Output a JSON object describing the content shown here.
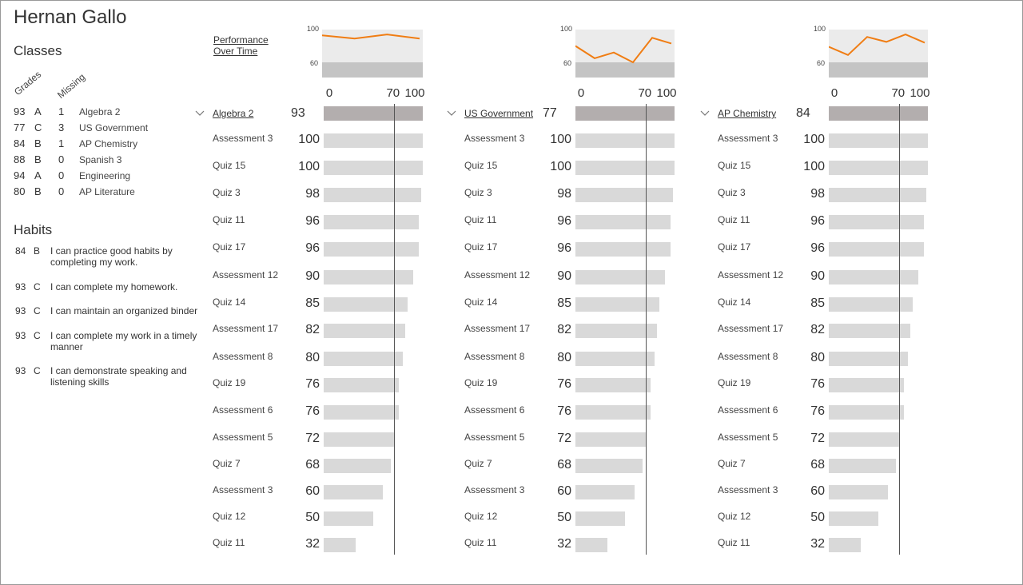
{
  "student": {
    "name": "Hernan Gallo"
  },
  "classes_section": {
    "title": "Classes",
    "col_grades": "Grades",
    "col_missing": "Missing",
    "rows": [
      {
        "score": "93",
        "grade": "A",
        "missing": "1",
        "name": "Algebra 2"
      },
      {
        "score": "77",
        "grade": "C",
        "missing": "3",
        "name": "US Government"
      },
      {
        "score": "84",
        "grade": "B",
        "missing": "1",
        "name": "AP Chemistry"
      },
      {
        "score": "88",
        "grade": "B",
        "missing": "0",
        "name": "Spanish 3"
      },
      {
        "score": "94",
        "grade": "A",
        "missing": "0",
        "name": "Engineering"
      },
      {
        "score": "80",
        "grade": "B",
        "missing": "0",
        "name": "AP Literature"
      }
    ]
  },
  "habits_section": {
    "title": "Habits",
    "rows": [
      {
        "score": "84",
        "grade": "B",
        "text": "I can practice good habits by completing my work."
      },
      {
        "score": "93",
        "grade": "C",
        "text": "I can complete my homework."
      },
      {
        "score": "93",
        "grade": "C",
        "text": "I can maintain an organized binder"
      },
      {
        "score": "93",
        "grade": "C",
        "text": "I can complete my work in a timely manner"
      },
      {
        "score": "93",
        "grade": "C",
        "text": "I can demonstrate speaking and listening skills"
      }
    ]
  },
  "performance_link": "Performance Over Time",
  "colors": {
    "line": "#f07d13",
    "spark_top": "#ebebeb",
    "spark_bottom": "#c4c4c4",
    "course_bar": "#b3aeae",
    "assessment_bar": "#d9d9d9"
  },
  "scale": {
    "min": 0,
    "max": 100,
    "reference": 70,
    "ticks": [
      "0",
      "70",
      "100"
    ],
    "spark_top_label": "100",
    "spark_mid_label": "60"
  },
  "courses": [
    {
      "name": "Algebra 2",
      "score": "93",
      "trend": [
        93,
        89,
        94,
        89
      ],
      "assessments": [
        {
          "name": "Assessment 3",
          "score": "100"
        },
        {
          "name": "Quiz 15",
          "score": "100"
        },
        {
          "name": "Quiz 3",
          "score": "98"
        },
        {
          "name": "Quiz 11",
          "score": "96"
        },
        {
          "name": "Quiz 17",
          "score": "96"
        },
        {
          "name": "Assessment 12",
          "score": "90"
        },
        {
          "name": "Quiz 14",
          "score": "85"
        },
        {
          "name": "Assessment 17",
          "score": "82"
        },
        {
          "name": "Assessment 8",
          "score": "80"
        },
        {
          "name": "Quiz 19",
          "score": "76"
        },
        {
          "name": "Assessment 6",
          "score": "76"
        },
        {
          "name": "Assessment 5",
          "score": "72"
        },
        {
          "name": "Quiz 7",
          "score": "68"
        },
        {
          "name": "Assessment 3",
          "score": "60"
        },
        {
          "name": "Quiz 12",
          "score": "50"
        },
        {
          "name": "Quiz 11",
          "score": "32"
        }
      ]
    },
    {
      "name": "US Government",
      "score": "77",
      "trend": [
        80,
        65,
        72,
        60,
        90,
        83
      ],
      "assessments": [
        {
          "name": "Assessment 3",
          "score": "100"
        },
        {
          "name": "Quiz 15",
          "score": "100"
        },
        {
          "name": "Quiz 3",
          "score": "98"
        },
        {
          "name": "Quiz 11",
          "score": "96"
        },
        {
          "name": "Quiz 17",
          "score": "96"
        },
        {
          "name": "Assessment 12",
          "score": "90"
        },
        {
          "name": "Quiz 14",
          "score": "85"
        },
        {
          "name": "Assessment 17",
          "score": "82"
        },
        {
          "name": "Assessment 8",
          "score": "80"
        },
        {
          "name": "Quiz 19",
          "score": "76"
        },
        {
          "name": "Assessment 6",
          "score": "76"
        },
        {
          "name": "Assessment 5",
          "score": "72"
        },
        {
          "name": "Quiz 7",
          "score": "68"
        },
        {
          "name": "Assessment 3",
          "score": "60"
        },
        {
          "name": "Quiz 12",
          "score": "50"
        },
        {
          "name": "Quiz 11",
          "score": "32"
        }
      ]
    },
    {
      "name": "AP Chemistry",
      "score": "84",
      "trend": [
        79,
        69,
        91,
        85,
        94,
        84
      ],
      "assessments": [
        {
          "name": "Assessment 3",
          "score": "100"
        },
        {
          "name": "Quiz 15",
          "score": "100"
        },
        {
          "name": "Quiz 3",
          "score": "98"
        },
        {
          "name": "Quiz 11",
          "score": "96"
        },
        {
          "name": "Quiz 17",
          "score": "96"
        },
        {
          "name": "Assessment 12",
          "score": "90"
        },
        {
          "name": "Quiz 14",
          "score": "85"
        },
        {
          "name": "Assessment 17",
          "score": "82"
        },
        {
          "name": "Assessment 8",
          "score": "80"
        },
        {
          "name": "Quiz 19",
          "score": "76"
        },
        {
          "name": "Assessment 6",
          "score": "76"
        },
        {
          "name": "Assessment 5",
          "score": "72"
        },
        {
          "name": "Quiz 7",
          "score": "68"
        },
        {
          "name": "Assessment 3",
          "score": "60"
        },
        {
          "name": "Quiz 12",
          "score": "50"
        },
        {
          "name": "Quiz 11",
          "score": "32"
        }
      ]
    }
  ]
}
